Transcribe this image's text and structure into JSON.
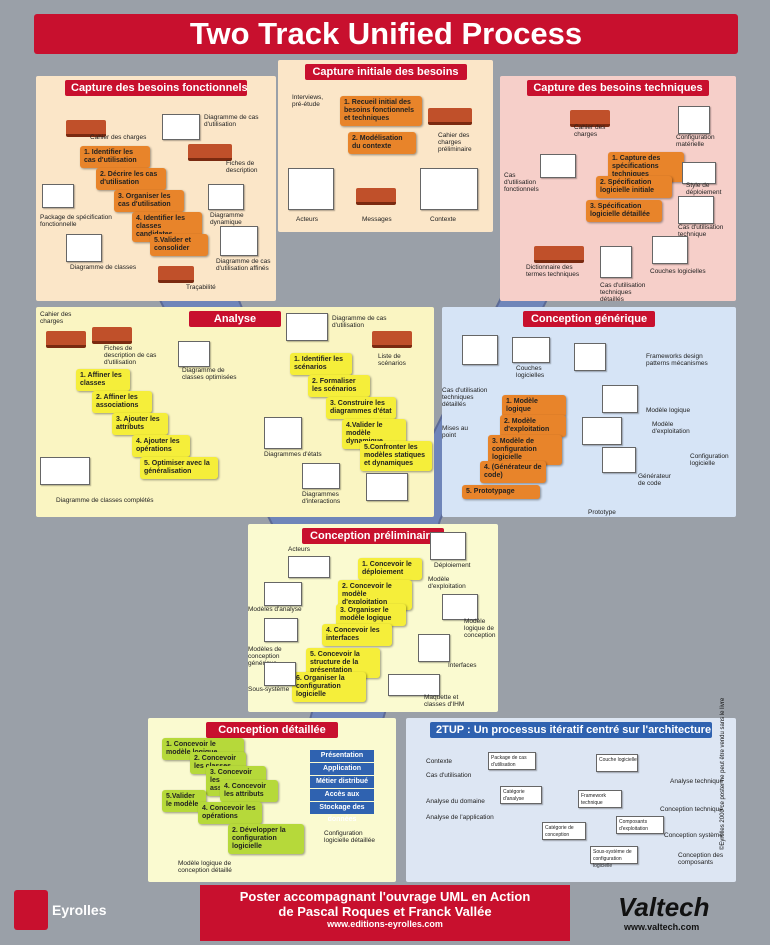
{
  "title": "Two Track Unified Process",
  "panels": {
    "cbf": "Capture des besoins fonctionnels",
    "cib": "Capture initiale des besoins",
    "cbt": "Capture des besoins techniques",
    "analyse": "Analyse",
    "cg": "Conception générique",
    "cp": "Conception préliminaire",
    "cd": "Conception détaillée",
    "tup": "2TUP : Un processus itératif centré sur l'architecture"
  },
  "cbf": {
    "steps": [
      "1. Identifier les cas d'utilisation",
      "2. Décrire les cas d'utilisation",
      "3. Organiser les cas d'utilisation",
      "4. Identifier les classes candidates",
      "5.Valider et consolider"
    ],
    "labels": [
      "Cahier des charges",
      "Diagramme de cas d'utilisation",
      "Fiches de description",
      "Package de spécification fonctionnelle",
      "Diagramme dynamique",
      "Diagramme de classes",
      "Diagramme de cas d'utilisation affinés",
      "Traçabilité"
    ]
  },
  "cib": {
    "steps": [
      "1. Recueil initial des besoins fonctionnels et techniques",
      "2. Modélisation du contexte"
    ],
    "labels": [
      "Interviews, pré-étude",
      "Cahier des charges préliminaire",
      "Acteurs",
      "Messages",
      "Contexte"
    ]
  },
  "cbt": {
    "steps": [
      "1. Capture des spécifications techniques",
      "2. Spécification logicielle initiale",
      "3. Spécification logicielle détaillée"
    ],
    "labels": [
      "Cahier des charges",
      "Configuration matérielle",
      "Cas d'utilisation fonctionnels",
      "Style de déploiement",
      "Cas d'utilisation technique",
      "Dictionnaire des termes techniques",
      "Couches logicielles",
      "Cas d'utilisation techniques détaillés"
    ]
  },
  "analyse": {
    "steps_left": [
      "1. Affiner les classes",
      "2. Affiner les associations",
      "3. Ajouter les attributs",
      "4. Ajouter les opérations",
      "5. Optimiser avec la généralisation"
    ],
    "steps_right": [
      "1. Identifier les scénarios",
      "2. Formaliser les scénarios",
      "3. Construire les diagrammes d'état",
      "4.Valider le modèle dynamique",
      "5.Confronter les modèles statiques et dynamiques"
    ],
    "labels": [
      "Cahier des charges",
      "Fiches de description de cas d'utilisation",
      "Diagramme de classes optimisées",
      "Diagramme de cas d'utilisation",
      "Liste de scénarios",
      "Diagrammes d'états",
      "Diagrammes d'interactions",
      "Diagramme de classes complétés"
    ]
  },
  "cg": {
    "steps": [
      "1. Modèle logique",
      "2. Modèle d'exploitation",
      "3. Modèle de configuration logicielle",
      "4. (Générateur de code)",
      "5. Prototypage"
    ],
    "labels": [
      "Cas d'utilisation techniques détaillés",
      "Couches logicielles",
      "Frameworks design patterns mécanismes",
      "Modèle logique",
      "Modèle d'exploitation",
      "Configuration logicielle",
      "Générateur de code",
      "Prototype",
      "Mises au point"
    ]
  },
  "cp": {
    "steps": [
      "1. Concevoir le déploiement",
      "2. Concevoir le modèle d'exploitation",
      "3. Organiser le modèle logique",
      "4. Concevoir les interfaces",
      "5. Concevoir la structure de la présentation",
      "6. Organiser la configuration logicielle"
    ],
    "labels": [
      "Acteurs",
      "Déploiement",
      "Modèle d'exploitation",
      "Modèles d'analyse",
      "Modèle logique de conception",
      "Modèles de conception générique",
      "Interfaces",
      "Sous-système",
      "Maquette et classes d'IHM"
    ]
  },
  "cd": {
    "steps": [
      "1. Concevoir le modèle logique",
      "2. Concevoir les classes",
      "3. Concevoir les associations",
      "4. Concevoir les attributs",
      "5.Valider le modèle",
      "4. Concevoir les opérations",
      "2. Développer la configuration logicielle"
    ],
    "layers": [
      "Présentation",
      "Application",
      "Métier distribué",
      "Accès aux données",
      "Stockage des données"
    ],
    "labels": [
      "Configuration logicielle détaillée",
      "Modèle logique de conception détaillé"
    ]
  },
  "tup": {
    "left": [
      "Contexte",
      "Cas d'utilisation",
      "Analyse du domaine",
      "Analyse de l'application"
    ],
    "right": [
      "Analyse technique",
      "Conception technique",
      "Conception système",
      "Conception des composants"
    ],
    "boxes": [
      "Package de cas d'utilisation",
      "Catégorie d'analyse",
      "Couche logicielle",
      "Framework technique",
      "Catégorie de conception",
      "Composants d'exploitation",
      "Sous-système de configuration logicielle"
    ]
  },
  "footer": {
    "line1": "Poster accompagnant l'ouvrage UML en Action",
    "line2": "de Pascal Roques et Franck Vallée",
    "line3": "www.editions-eyrolles.com"
  },
  "logos": {
    "eyrolles": "Eyrolles",
    "valtech": "Valtech",
    "valtech_url": "www.valtech.com"
  },
  "side_text": "©Eyrolles 2000 ce poster ne peut être vendu sans le livre",
  "colors": {
    "red": "#c8102e",
    "orange": "#e8842a",
    "yellow": "#f5ee3a",
    "green": "#b6d93a",
    "blue": "#2f62b0"
  }
}
